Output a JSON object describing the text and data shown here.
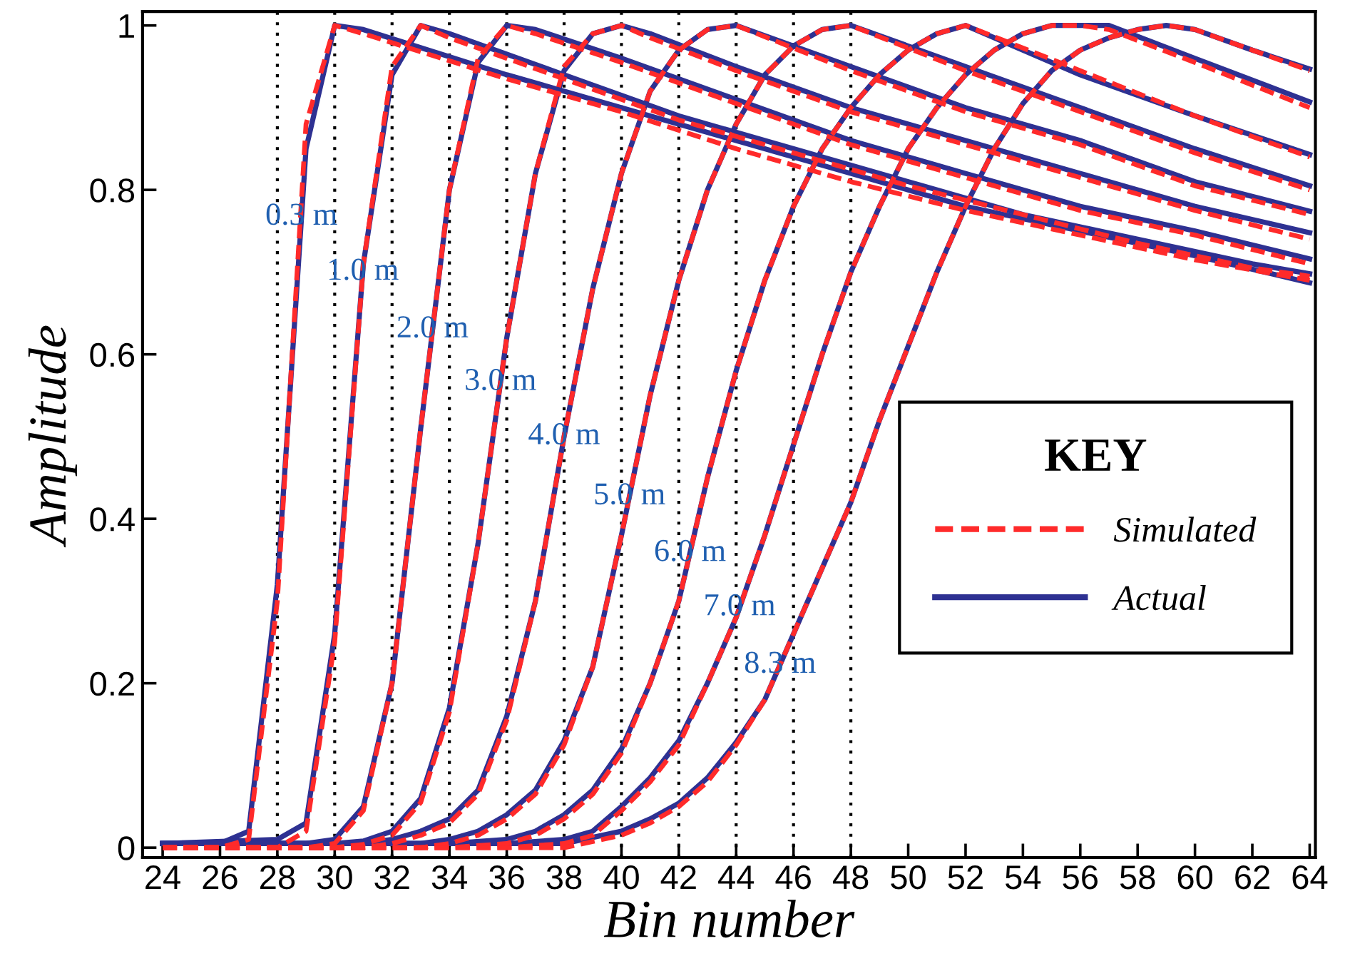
{
  "chart_data": {
    "type": "line",
    "xlabel": "Bin number",
    "ylabel": "Amplitude",
    "legend_title": "KEY",
    "xlim": [
      23.3,
      64.2
    ],
    "ylim": [
      -0.012,
      1.017
    ],
    "xticks": [
      24,
      26,
      28,
      30,
      32,
      34,
      36,
      38,
      40,
      42,
      44,
      46,
      48,
      50,
      52,
      54,
      56,
      58,
      60,
      62,
      64
    ],
    "yticks": [
      0,
      0.2,
      0.4,
      0.6,
      0.8,
      1
    ],
    "grid": false,
    "legend": "right",
    "marker": "none",
    "ref_lines": [
      {
        "axis": "x",
        "value": 28,
        "label": null,
        "color": "#000000",
        "line_style": "dotted"
      },
      {
        "axis": "x",
        "value": 30,
        "label": null,
        "color": "#000000",
        "line_style": "dotted"
      },
      {
        "axis": "x",
        "value": 32,
        "label": null,
        "color": "#000000",
        "line_style": "dotted"
      },
      {
        "axis": "x",
        "value": 34,
        "label": null,
        "color": "#000000",
        "line_style": "dotted"
      },
      {
        "axis": "x",
        "value": 36,
        "label": null,
        "color": "#000000",
        "line_style": "dotted"
      },
      {
        "axis": "x",
        "value": 38,
        "label": null,
        "color": "#000000",
        "line_style": "dotted"
      },
      {
        "axis": "x",
        "value": 40,
        "label": null,
        "color": "#000000",
        "line_style": "dotted"
      },
      {
        "axis": "x",
        "value": 42,
        "label": null,
        "color": "#000000",
        "line_style": "dotted"
      },
      {
        "axis": "x",
        "value": 44,
        "label": null,
        "color": "#000000",
        "line_style": "dotted"
      },
      {
        "axis": "x",
        "value": 46,
        "label": null,
        "color": "#000000",
        "line_style": "dotted"
      },
      {
        "axis": "x",
        "value": 48,
        "label": null,
        "color": "#000000",
        "line_style": "dotted"
      }
    ],
    "annotations": [
      {
        "text": "0.3 m",
        "x": 28.84,
        "y": 0.767
      },
      {
        "text": "1.0 m",
        "x": 30.98,
        "y": 0.7
      },
      {
        "text": "2.0 m",
        "x": 33.41,
        "y": 0.63
      },
      {
        "text": "3.0 m",
        "x": 35.78,
        "y": 0.566
      },
      {
        "text": "4.0 m",
        "x": 38,
        "y": 0.5
      },
      {
        "text": "5.0 m",
        "x": 40.28,
        "y": 0.427
      },
      {
        "text": "6.0 m",
        "x": 42.39,
        "y": 0.358
      },
      {
        "text": "7.0 m",
        "x": 44.12,
        "y": 0.292
      },
      {
        "text": "8.3 m",
        "x": 45.53,
        "y": 0.222
      }
    ],
    "series": [
      {
        "name": "Simulated",
        "color": "#ff2a2a",
        "line_style": "dashed",
        "x": [
          24,
          26,
          27,
          28,
          29,
          30,
          31,
          36,
          40,
          44,
          48,
          52,
          56,
          60,
          64
        ],
        "values": [
          0,
          0,
          0.01,
          0.3,
          0.88,
          1.0,
          0.99,
          0.935,
          0.895,
          0.85,
          0.81,
          0.775,
          0.745,
          0.715,
          0.69
        ]
      },
      {
        "color": "#ff2a2a",
        "line_style": "dashed",
        "x": [
          24,
          28,
          29,
          30,
          31,
          32,
          33,
          34,
          38,
          42,
          46,
          50,
          54,
          58,
          62,
          64
        ],
        "values": [
          0,
          0,
          0.02,
          0.25,
          0.71,
          0.95,
          1.0,
          0.985,
          0.935,
          0.885,
          0.845,
          0.805,
          0.77,
          0.735,
          0.705,
          0.695
        ]
      },
      {
        "color": "#ff2a2a",
        "line_style": "dashed",
        "x": [
          24,
          29,
          30,
          31,
          32,
          33,
          34,
          35,
          36,
          37,
          40,
          44,
          48,
          52,
          56,
          60,
          64
        ],
        "values": [
          0,
          0,
          0.005,
          0.045,
          0.2,
          0.51,
          0.8,
          0.96,
          1.0,
          0.99,
          0.955,
          0.905,
          0.855,
          0.815,
          0.775,
          0.745,
          0.71
        ]
      },
      {
        "color": "#ff2a2a",
        "line_style": "dashed",
        "x": [
          24,
          30,
          31,
          32,
          33,
          34,
          35,
          36,
          37,
          38,
          39,
          40,
          41,
          44,
          48,
          52,
          56,
          60,
          64
        ],
        "values": [
          0,
          0,
          0.004,
          0.015,
          0.055,
          0.165,
          0.37,
          0.62,
          0.82,
          0.95,
          0.99,
          1.0,
          0.985,
          0.945,
          0.895,
          0.855,
          0.815,
          0.775,
          0.74
        ]
      },
      {
        "color": "#ff2a2a",
        "line_style": "dashed",
        "x": [
          24,
          31,
          32,
          33,
          34,
          35,
          36,
          37,
          38,
          39,
          40,
          41,
          42,
          43,
          44,
          48,
          52,
          56,
          60,
          64
        ],
        "values": [
          0,
          0,
          0.005,
          0.015,
          0.03,
          0.065,
          0.155,
          0.3,
          0.5,
          0.68,
          0.82,
          0.92,
          0.97,
          0.995,
          1.0,
          0.945,
          0.895,
          0.855,
          0.805,
          0.77
        ]
      },
      {
        "color": "#ff2a2a",
        "line_style": "dashed",
        "x": [
          24,
          33,
          34,
          35,
          36,
          37,
          38,
          39,
          40,
          41,
          42,
          43,
          44,
          45,
          46,
          47,
          48,
          52,
          56,
          60,
          64
        ],
        "values": [
          0,
          0,
          0.005,
          0.015,
          0.035,
          0.065,
          0.125,
          0.22,
          0.38,
          0.55,
          0.69,
          0.8,
          0.88,
          0.94,
          0.975,
          0.995,
          1.0,
          0.945,
          0.895,
          0.845,
          0.8
        ]
      },
      {
        "color": "#ff2a2a",
        "line_style": "dashed",
        "x": [
          24,
          34,
          36,
          37,
          38,
          39,
          40,
          41,
          42,
          43,
          44,
          45,
          46,
          47,
          48,
          49,
          50,
          51,
          52,
          56,
          60,
          64
        ],
        "values": [
          0,
          0,
          0.005,
          0.015,
          0.035,
          0.065,
          0.115,
          0.2,
          0.3,
          0.45,
          0.58,
          0.69,
          0.78,
          0.85,
          0.9,
          0.94,
          0.97,
          0.99,
          1.0,
          0.945,
          0.89,
          0.84
        ]
      },
      {
        "color": "#ff2a2a",
        "line_style": "dashed",
        "x": [
          24,
          36,
          38,
          39,
          40,
          41,
          42,
          43,
          44,
          45,
          46,
          47,
          48,
          49,
          50,
          51,
          52,
          53,
          54,
          55,
          56,
          57,
          60,
          64
        ],
        "values": [
          0,
          0,
          0.005,
          0.015,
          0.045,
          0.08,
          0.125,
          0.2,
          0.28,
          0.38,
          0.49,
          0.6,
          0.7,
          0.78,
          0.85,
          0.9,
          0.94,
          0.97,
          0.99,
          1.0,
          1.0,
          0.995,
          0.955,
          0.9
        ]
      },
      {
        "color": "#ff2a2a",
        "line_style": "dashed",
        "x": [
          24,
          38,
          40,
          41,
          42,
          43,
          44,
          45,
          46,
          47,
          48,
          49,
          50,
          51,
          52,
          53,
          54,
          55,
          56,
          57,
          58,
          59,
          60,
          62,
          64
        ],
        "values": [
          0,
          0,
          0.015,
          0.03,
          0.05,
          0.08,
          0.125,
          0.18,
          0.26,
          0.34,
          0.42,
          0.52,
          0.61,
          0.7,
          0.78,
          0.85,
          0.905,
          0.945,
          0.97,
          0.985,
          0.995,
          1.0,
          0.995,
          0.97,
          0.945
        ]
      },
      {
        "name": "Actual",
        "color": "#2e3192",
        "line_style": "solid",
        "x": [
          24,
          26,
          27,
          28,
          29,
          30,
          31,
          36,
          40,
          44,
          48,
          52,
          56,
          60,
          64
        ],
        "values": [
          0.005,
          0.005,
          0.02,
          0.32,
          0.85,
          1.0,
          0.995,
          0.94,
          0.9,
          0.86,
          0.82,
          0.78,
          0.75,
          0.72,
          0.687
        ]
      },
      {
        "color": "#2e3192",
        "line_style": "solid",
        "x": [
          24,
          28,
          29,
          30,
          31,
          32,
          33,
          34,
          38,
          42,
          46,
          50,
          54,
          58,
          62,
          64
        ],
        "values": [
          0.005,
          0.01,
          0.03,
          0.26,
          0.71,
          0.94,
          1.0,
          0.99,
          0.94,
          0.89,
          0.85,
          0.81,
          0.77,
          0.74,
          0.71,
          0.698
        ]
      },
      {
        "color": "#2e3192",
        "line_style": "solid",
        "x": [
          24,
          29,
          30,
          31,
          32,
          33,
          34,
          35,
          36,
          37,
          40,
          44,
          48,
          52,
          56,
          60,
          64
        ],
        "values": [
          0.005,
          0.005,
          0.01,
          0.05,
          0.2,
          0.51,
          0.8,
          0.955,
          1.0,
          0.995,
          0.96,
          0.91,
          0.86,
          0.82,
          0.78,
          0.75,
          0.716
        ]
      },
      {
        "color": "#2e3192",
        "line_style": "solid",
        "x": [
          24,
          30,
          31,
          32,
          33,
          34,
          35,
          36,
          37,
          38,
          39,
          40,
          41,
          44,
          48,
          52,
          56,
          60,
          64
        ],
        "values": [
          0.005,
          0.005,
          0.008,
          0.02,
          0.06,
          0.17,
          0.37,
          0.62,
          0.82,
          0.945,
          0.99,
          1.0,
          0.99,
          0.95,
          0.9,
          0.86,
          0.82,
          0.78,
          0.748
        ]
      },
      {
        "color": "#2e3192",
        "line_style": "solid",
        "x": [
          24,
          31,
          32,
          33,
          34,
          35,
          36,
          37,
          38,
          39,
          40,
          41,
          42,
          43,
          44,
          48,
          52,
          56,
          60,
          64
        ],
        "values": [
          0.005,
          0.005,
          0.01,
          0.02,
          0.035,
          0.07,
          0.16,
          0.3,
          0.5,
          0.68,
          0.82,
          0.92,
          0.97,
          0.995,
          1.0,
          0.95,
          0.9,
          0.86,
          0.81,
          0.774
        ]
      },
      {
        "color": "#2e3192",
        "line_style": "solid",
        "x": [
          24,
          33,
          34,
          35,
          36,
          37,
          38,
          39,
          40,
          41,
          42,
          43,
          44,
          45,
          46,
          47,
          48,
          52,
          56,
          60,
          64
        ],
        "values": [
          0.005,
          0.005,
          0.01,
          0.02,
          0.04,
          0.07,
          0.13,
          0.22,
          0.38,
          0.55,
          0.69,
          0.8,
          0.88,
          0.94,
          0.975,
          0.995,
          1.0,
          0.95,
          0.9,
          0.85,
          0.805
        ]
      },
      {
        "color": "#2e3192",
        "line_style": "solid",
        "x": [
          24,
          34,
          36,
          37,
          38,
          39,
          40,
          41,
          42,
          43,
          44,
          45,
          46,
          47,
          48,
          49,
          50,
          51,
          52,
          56,
          60,
          64
        ],
        "values": [
          0.005,
          0.005,
          0.01,
          0.02,
          0.04,
          0.07,
          0.12,
          0.2,
          0.3,
          0.45,
          0.58,
          0.69,
          0.78,
          0.85,
          0.9,
          0.94,
          0.97,
          0.99,
          1.0,
          0.94,
          0.89,
          0.843
        ]
      },
      {
        "color": "#2e3192",
        "line_style": "solid",
        "x": [
          24,
          36,
          38,
          39,
          40,
          41,
          42,
          43,
          44,
          45,
          46,
          47,
          48,
          49,
          50,
          51,
          52,
          53,
          54,
          55,
          56,
          57,
          60,
          64
        ],
        "values": [
          0.005,
          0.005,
          0.01,
          0.02,
          0.05,
          0.085,
          0.13,
          0.2,
          0.28,
          0.38,
          0.49,
          0.6,
          0.7,
          0.78,
          0.85,
          0.9,
          0.94,
          0.97,
          0.99,
          1.0,
          1.0,
          1.0,
          0.96,
          0.907
        ]
      },
      {
        "color": "#2e3192",
        "line_style": "solid",
        "x": [
          24,
          38,
          40,
          41,
          42,
          43,
          44,
          45,
          46,
          47,
          48,
          49,
          50,
          51,
          52,
          53,
          54,
          55,
          56,
          57,
          58,
          59,
          60,
          62,
          64
        ],
        "values": [
          0.005,
          0.005,
          0.02,
          0.035,
          0.054,
          0.085,
          0.128,
          0.18,
          0.26,
          0.34,
          0.42,
          0.52,
          0.61,
          0.7,
          0.78,
          0.85,
          0.905,
          0.945,
          0.97,
          0.985,
          0.995,
          1.0,
          0.995,
          0.97,
          0.947
        ]
      }
    ]
  }
}
